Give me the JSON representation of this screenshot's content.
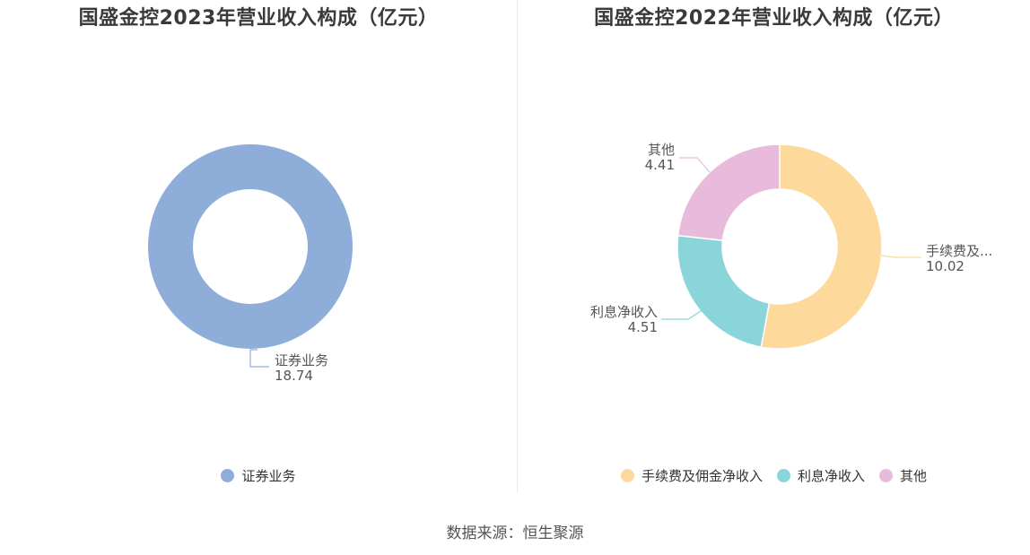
{
  "chart_data": [
    {
      "type": "pie",
      "title": "国盛金控2023年营业收入构成（亿元）",
      "slices": [
        {
          "label": "证券业务",
          "display_label": "证券业务",
          "value": 18.74,
          "color": "#8fadd9"
        }
      ],
      "legend_position": "bottom",
      "donut": true
    },
    {
      "type": "pie",
      "title": "国盛金控2022年营业收入构成（亿元）",
      "slices": [
        {
          "label": "手续费及佣金净收入",
          "display_label": "手续费及...",
          "value": 10.02,
          "color": "#fdd99b"
        },
        {
          "label": "利息净收入",
          "display_label": "利息净收入",
          "value": 4.51,
          "color": "#89d5d9"
        },
        {
          "label": "其他",
          "display_label": "其他",
          "value": 4.41,
          "color": "#e8bbdc"
        }
      ],
      "legend_position": "bottom",
      "donut": true
    }
  ],
  "footer": {
    "source": "数据来源：恒生聚源"
  }
}
